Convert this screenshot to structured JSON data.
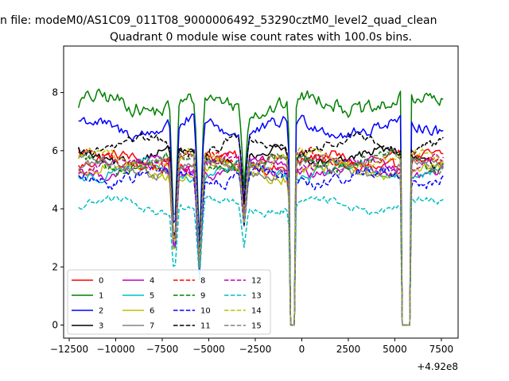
{
  "chart_data": {
    "type": "line",
    "suptitle": "n file: modeM0/AS1C09_011T08_9000006492_53290cztM0_level2_quad_clean",
    "title": "Quadrant 0 module wise count rates with 100.0s bins.",
    "xlabel": "",
    "ylabel": "",
    "x_offset_label": "+4.92e8",
    "xlim": [
      -12800,
      8400
    ],
    "ylim": [
      -0.45,
      9.6
    ],
    "x_range": [
      -12000,
      7600
    ],
    "bin_seconds": 100,
    "x_ticks": [
      -12500,
      -10000,
      -7500,
      -5000,
      -2500,
      0,
      2500,
      5000,
      7500
    ],
    "x_tick_labels": [
      "−12500",
      "−10000",
      "−7500",
      "−5000",
      "−2500",
      "0",
      "2500",
      "5000",
      "7500"
    ],
    "y_ticks": [
      0,
      2,
      4,
      6,
      8
    ],
    "y_tick_labels": [
      "0",
      "2",
      "4",
      "6",
      "8"
    ],
    "grid": false,
    "legend_position": "lower-left",
    "legend_columns": 4,
    "dips": [
      {
        "center": -6850,
        "depth": 0.6
      },
      {
        "center": -5500,
        "depth": 0.65
      },
      {
        "center": -3100,
        "depth": 0.35
      },
      {
        "center": -550,
        "depth": 0.35
      }
    ],
    "zero_intervals": [
      [
        -650,
        -350
      ],
      [
        5350,
        5800
      ]
    ],
    "series": [
      {
        "name": "0",
        "color": "#ff0000",
        "dash": "solid",
        "base": 5.6,
        "noise": 0.35
      },
      {
        "name": "1",
        "color": "#008000",
        "dash": "solid",
        "base": 7.6,
        "noise": 0.5
      },
      {
        "name": "2",
        "color": "#0000ff",
        "dash": "solid",
        "base": 6.8,
        "noise": 0.4
      },
      {
        "name": "3",
        "color": "#000000",
        "dash": "solid",
        "base": 5.8,
        "noise": 0.3
      },
      {
        "name": "4",
        "color": "#bf00bf",
        "dash": "solid",
        "base": 5.4,
        "noise": 0.3
      },
      {
        "name": "5",
        "color": "#00bfbf",
        "dash": "solid",
        "base": 5.3,
        "noise": 0.3
      },
      {
        "name": "6",
        "color": "#bfbf00",
        "dash": "solid",
        "base": 5.3,
        "noise": 0.35
      },
      {
        "name": "7",
        "color": "#808080",
        "dash": "solid",
        "base": 5.4,
        "noise": 0.3
      },
      {
        "name": "8",
        "color": "#ff0000",
        "dash": "dashed",
        "base": 5.7,
        "noise": 0.3
      },
      {
        "name": "9",
        "color": "#008000",
        "dash": "dashed",
        "base": 5.6,
        "noise": 0.3
      },
      {
        "name": "10",
        "color": "#0000ff",
        "dash": "dashed",
        "base": 5.1,
        "noise": 0.35
      },
      {
        "name": "11",
        "color": "#000000",
        "dash": "dashed",
        "base": 6.2,
        "noise": 0.3
      },
      {
        "name": "12",
        "color": "#bf00bf",
        "dash": "dashed",
        "base": 5.5,
        "noise": 0.3
      },
      {
        "name": "13",
        "color": "#00bfbf",
        "dash": "dashed",
        "base": 4.1,
        "noise": 0.25
      },
      {
        "name": "14",
        "color": "#bfbf00",
        "dash": "dashed",
        "base": 5.7,
        "noise": 0.3
      },
      {
        "name": "15",
        "color": "#808080",
        "dash": "dashed",
        "base": 5.6,
        "noise": 0.3
      }
    ]
  }
}
